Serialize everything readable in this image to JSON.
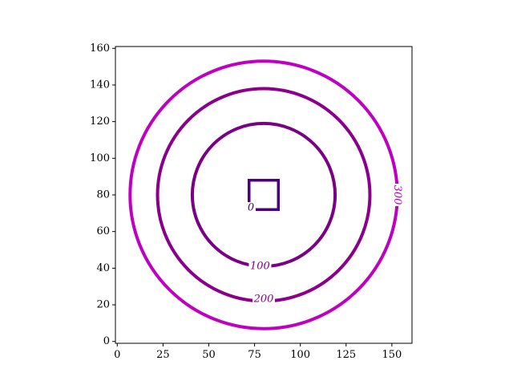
{
  "chart_data": {
    "type": "contour",
    "title": "",
    "xlabel": "",
    "ylabel": "",
    "xlim": [
      -1,
      161
    ],
    "ylim": [
      -1,
      161
    ],
    "xticks": [
      0,
      25,
      50,
      75,
      100,
      125,
      150
    ],
    "yticks": [
      0,
      20,
      40,
      60,
      80,
      100,
      120,
      140,
      160
    ],
    "center": [
      80,
      80
    ],
    "grid": false,
    "legend": "none",
    "levels": [
      {
        "level": 0,
        "label": "0",
        "shape": "square",
        "half_width": 8,
        "color": "#4b0082",
        "label_at": [
          73,
          73
        ]
      },
      {
        "level": 100,
        "label": "100",
        "shape": "circle",
        "radius": 39,
        "color": "#7a0085",
        "label_at": [
          78,
          41
        ]
      },
      {
        "level": 200,
        "label": "200",
        "shape": "circle",
        "radius": 58,
        "color": "#8b008b",
        "label_at": [
          80,
          23
        ]
      },
      {
        "level": 300,
        "label": "300",
        "shape": "circle",
        "radius": 73,
        "color": "#c000c0",
        "label_at": [
          153,
          80
        ],
        "label_rotation": 90
      }
    ]
  }
}
